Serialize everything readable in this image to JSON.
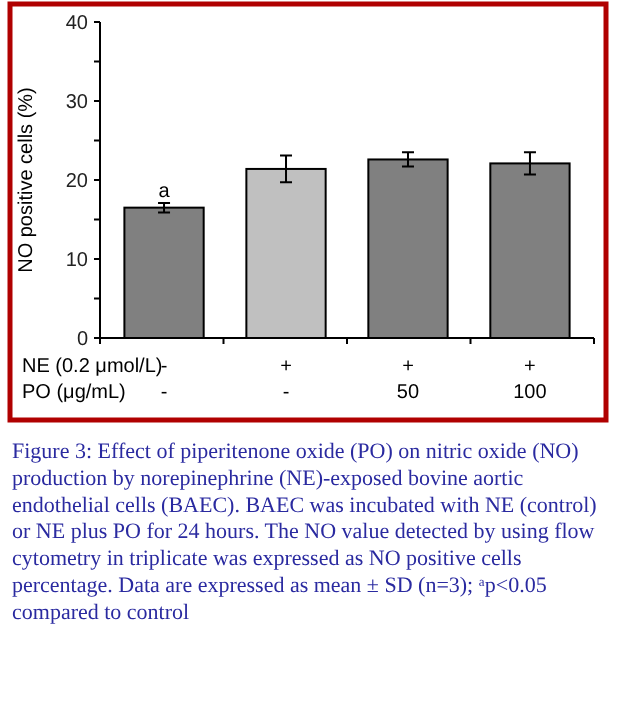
{
  "chart_data": {
    "type": "bar",
    "ylabel": "NO positive cells (%)",
    "categories": [
      "-\n-",
      "+\n-",
      "+\n50",
      "+\n100"
    ],
    "values": [
      16.5,
      21.4,
      22.6,
      22.1
    ],
    "colors": [
      "#808080",
      "#c0c0c0",
      "#808080",
      "#808080"
    ],
    "errors": [
      0.6,
      1.7,
      0.9,
      1.4
    ],
    "ylim": [
      0,
      40
    ],
    "yticks": [
      0,
      {
        "value": 5,
        "label": null
      },
      10,
      {
        "value": 15,
        "label": null
      },
      20,
      {
        "value": 25,
        "label": null
      },
      30,
      {
        "value": 35,
        "label": null
      },
      40
    ],
    "grid": false,
    "annotations": [
      "NE (0.2 μmol/L)",
      "PO (μg/mL)",
      {
        "text": "a",
        "x": "-\n-",
        "y": 17.1
      },
      "Figure 3: Effect of piperitenone oxide (PO) on nitric oxide (NO) production by norepinephrine (NE)-exposed bovine aortic endothelial cells (BAEC). BAEC was incubated with NE (control) or NE plus PO for 24 hours. The NO value detected by using flow cytometry in triplicate was expressed as NO positive cells percentage. Data are expressed as mean ± SD (n=3); ᵃp<0.05 compared to control"
    ]
  }
}
